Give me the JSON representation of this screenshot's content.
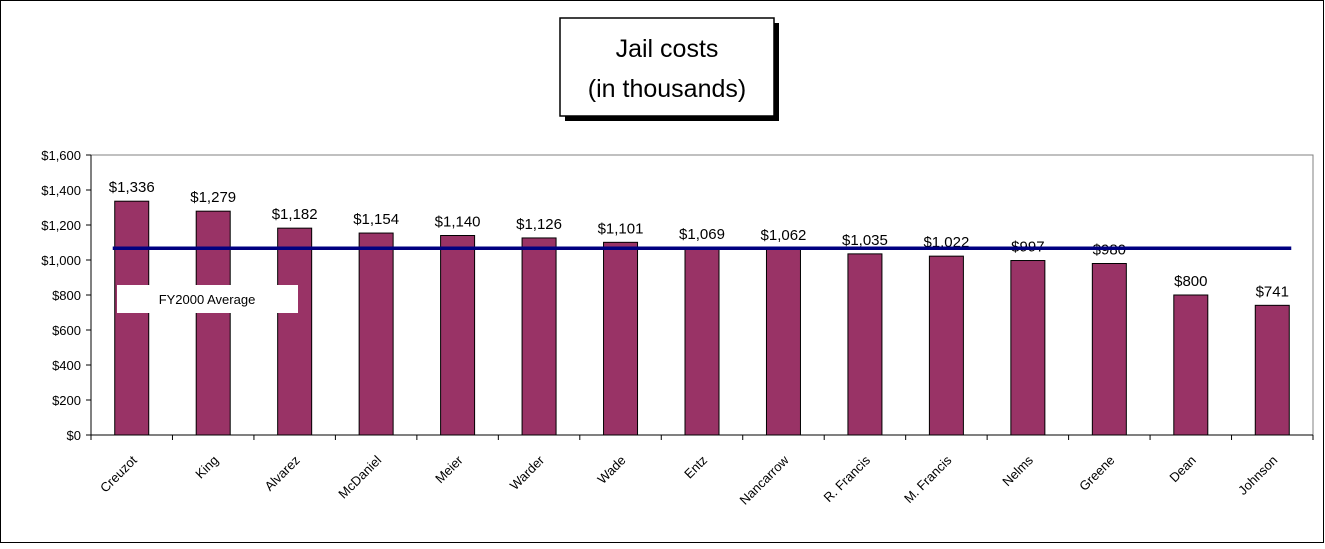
{
  "chart_data": {
    "type": "bar",
    "title_lines": [
      "Jail costs",
      "(in thousands)"
    ],
    "categories": [
      "Creuzot",
      "King",
      "Alvarez",
      "McDaniel",
      "Meier",
      "Warder",
      "Wade",
      "Entz",
      "Nancarrow",
      "R. Francis",
      "M. Francis",
      "Nelms",
      "Greene",
      "Dean",
      "Johnson"
    ],
    "values": [
      1336,
      1279,
      1182,
      1154,
      1140,
      1126,
      1101,
      1069,
      1062,
      1035,
      1022,
      997,
      980,
      800,
      741
    ],
    "data_labels": [
      "$1,336",
      "$1,279",
      "$1,182",
      "$1,154",
      "$1,140",
      "$1,126",
      "$1,101",
      "$1,069",
      "$1,062",
      "$1,035",
      "$1,022",
      "$997",
      "$980",
      "$800",
      "$741"
    ],
    "y_ticks": [
      0,
      200,
      400,
      600,
      800,
      1000,
      1200,
      1400,
      1600
    ],
    "y_tick_labels": [
      "$0",
      "$200",
      "$400",
      "$600",
      "$800",
      "$1,000",
      "$1,200",
      "$1,400",
      "$1,600"
    ],
    "ylim": [
      0,
      1600
    ],
    "average": {
      "label": "FY2000 Average",
      "value": 1067
    },
    "xlabel": "",
    "ylabel": "",
    "grid": false,
    "colors": {
      "bar": "#993366",
      "average_line": "#000080",
      "axis": "#000000"
    }
  }
}
